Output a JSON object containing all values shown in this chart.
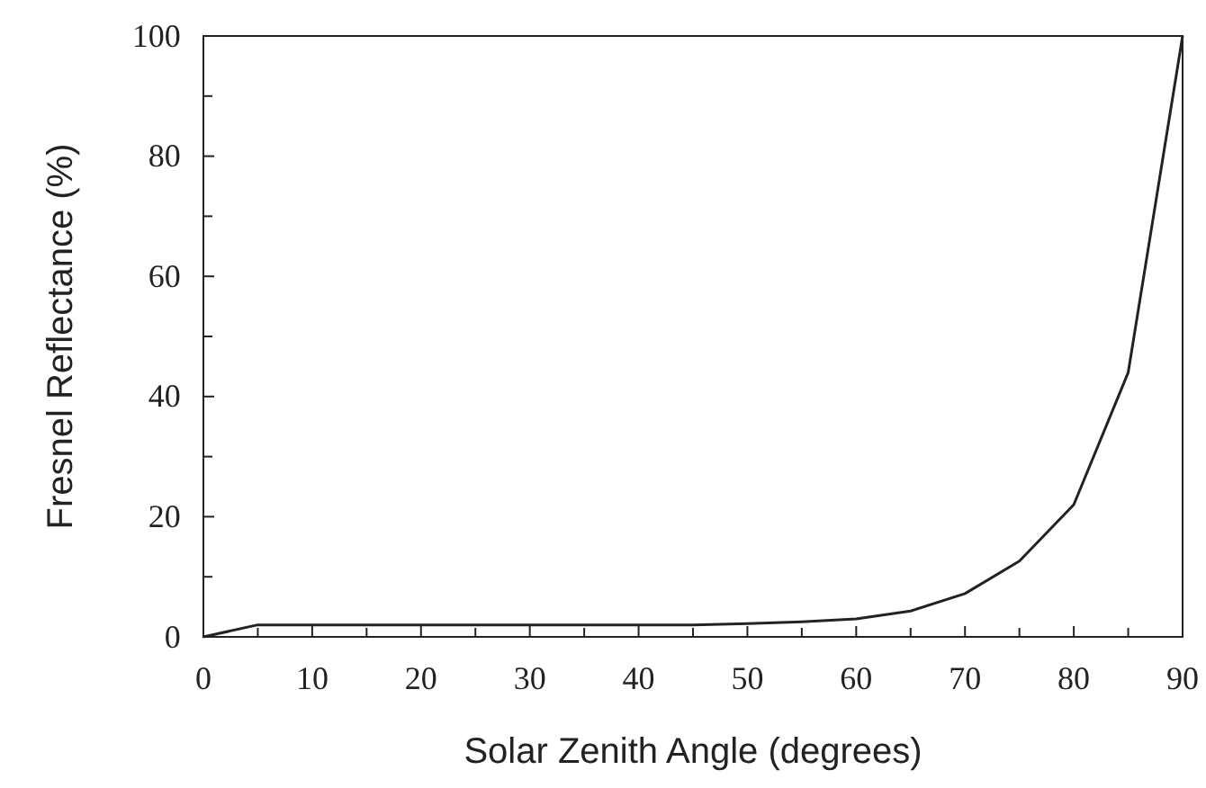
{
  "chart_data": {
    "type": "line",
    "xlabel": "Solar Zenith Angle (degrees)",
    "ylabel": "Fresnel Reflectance (%)",
    "x": [
      0,
      5,
      10,
      15,
      20,
      25,
      30,
      35,
      40,
      45,
      50,
      55,
      60,
      65,
      70,
      75,
      80,
      85,
      90
    ],
    "series": [
      {
        "color": "#222222",
        "values": [
          0,
          2,
          2,
          2,
          2,
          2,
          2,
          2,
          2,
          2,
          2.2,
          2.5,
          3,
          4.3,
          7.2,
          12.6,
          22,
          44,
          100
        ]
      }
    ],
    "xlim": [
      0,
      90
    ],
    "ylim": [
      0,
      100
    ],
    "xticks": [
      0,
      {
        "value": 5,
        "label": null
      },
      10,
      {
        "value": 15,
        "label": null
      },
      20,
      {
        "value": 25,
        "label": null
      },
      30,
      {
        "value": 35,
        "label": null
      },
      40,
      {
        "value": 45,
        "label": null
      },
      50,
      {
        "value": 55,
        "label": null
      },
      60,
      {
        "value": 65,
        "label": null
      },
      70,
      {
        "value": 75,
        "label": null
      },
      80,
      {
        "value": 85,
        "label": null
      },
      90
    ],
    "yticks": [
      0,
      {
        "value": 10,
        "label": null
      },
      20,
      {
        "value": 30,
        "label": null
      },
      40,
      {
        "value": 50,
        "label": null
      },
      60,
      {
        "value": 70,
        "label": null
      },
      80,
      {
        "value": 90,
        "label": null
      },
      100
    ],
    "grid": false,
    "marker": "none",
    "line_style": "solid"
  }
}
